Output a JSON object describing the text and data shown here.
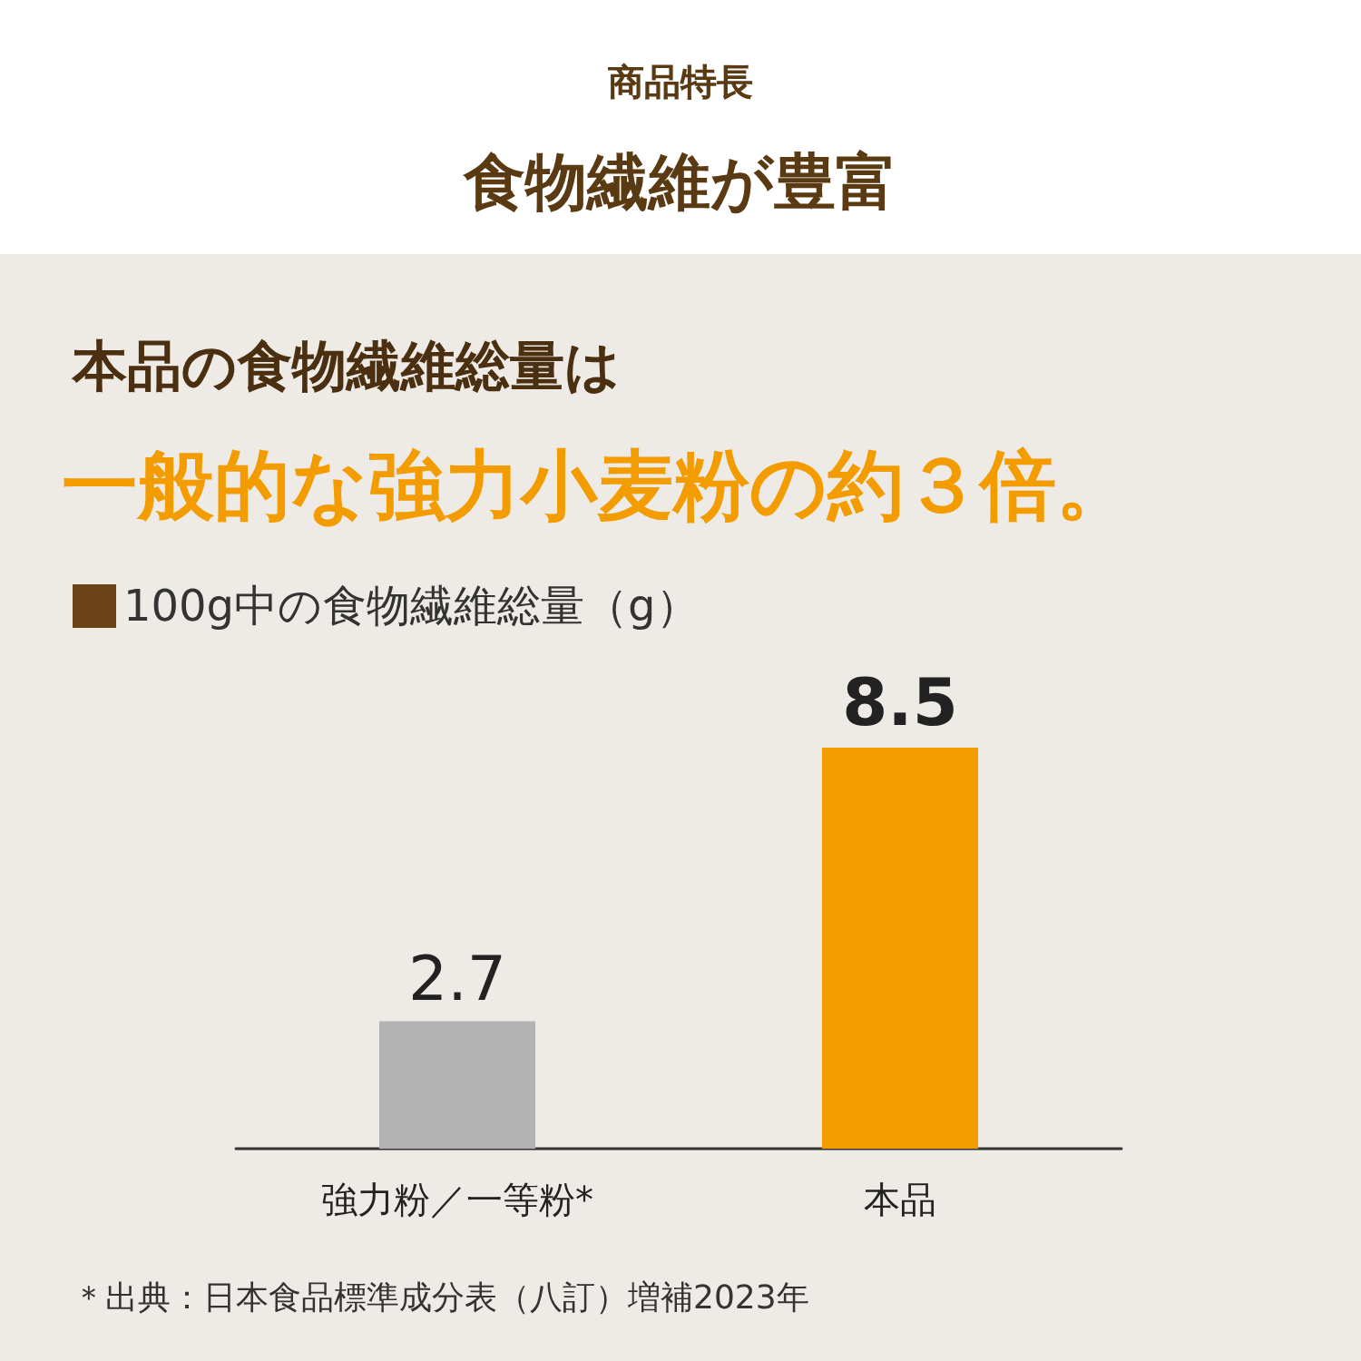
{
  "chart_data": {
    "type": "bar",
    "subtitle": "商品特長",
    "title": "食物繊維が豊富",
    "annotations": [
      "本品の食物繊維総量は",
      "一般的な強力小麦粉の約３倍。",
      "＊出典：日本食品標準成分表（八訂）増補2023年"
    ],
    "ylabel": "100g中の食物繊維総量（g）",
    "categories": [
      "強力粉／一等粉*",
      "本品"
    ],
    "values": [
      2.7,
      8.5
    ],
    "colors": [
      "#b3b3b3",
      "#f39c00"
    ],
    "data_labels": true,
    "grid": false
  }
}
